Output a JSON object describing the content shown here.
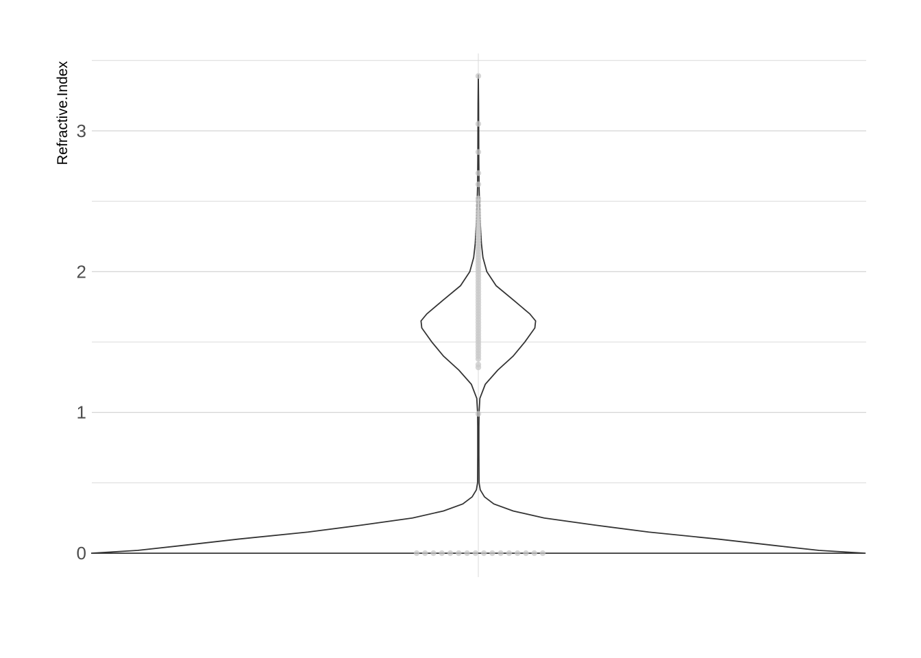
{
  "chart_data": {
    "type": "violin",
    "title": "",
    "xlabel": "",
    "ylabel": "Refractive.Index",
    "ylim": [
      -0.17,
      3.55
    ],
    "y_ticks": [
      {
        "value": 0,
        "label": "0"
      },
      {
        "value": 1,
        "label": "1"
      },
      {
        "value": 2,
        "label": "2"
      },
      {
        "value": 3,
        "label": "3"
      }
    ],
    "y_minor_ticks": [
      0.5,
      1.5,
      2.5,
      3.5
    ],
    "grid": true,
    "legend": "none",
    "density_profile": [
      {
        "y": 0.0,
        "width": 1.0
      },
      {
        "y": 0.02,
        "width": 0.88
      },
      {
        "y": 0.05,
        "width": 0.78
      },
      {
        "y": 0.1,
        "width": 0.62
      },
      {
        "y": 0.15,
        "width": 0.44
      },
      {
        "y": 0.2,
        "width": 0.3
      },
      {
        "y": 0.25,
        "width": 0.17
      },
      {
        "y": 0.3,
        "width": 0.09
      },
      {
        "y": 0.35,
        "width": 0.04
      },
      {
        "y": 0.4,
        "width": 0.016
      },
      {
        "y": 0.45,
        "width": 0.005
      },
      {
        "y": 0.5,
        "width": 0.002
      },
      {
        "y": 0.7,
        "width": 0.0015
      },
      {
        "y": 0.9,
        "width": 0.0015
      },
      {
        "y": 1.0,
        "width": 0.002
      },
      {
        "y": 1.1,
        "width": 0.004
      },
      {
        "y": 1.2,
        "width": 0.018
      },
      {
        "y": 1.3,
        "width": 0.05
      },
      {
        "y": 1.4,
        "width": 0.09
      },
      {
        "y": 1.5,
        "width": 0.12
      },
      {
        "y": 1.6,
        "width": 0.146
      },
      {
        "y": 1.65,
        "width": 0.148
      },
      {
        "y": 1.7,
        "width": 0.133
      },
      {
        "y": 1.8,
        "width": 0.09
      },
      {
        "y": 1.9,
        "width": 0.046
      },
      {
        "y": 2.0,
        "width": 0.022
      },
      {
        "y": 2.1,
        "width": 0.012
      },
      {
        "y": 2.2,
        "width": 0.008
      },
      {
        "y": 2.4,
        "width": 0.004
      },
      {
        "y": 2.6,
        "width": 0.002
      },
      {
        "y": 2.8,
        "width": 0.0013
      },
      {
        "y": 3.0,
        "width": 0.001
      },
      {
        "y": 3.2,
        "width": 0.0007
      },
      {
        "y": 3.4,
        "width": 0.0
      }
    ],
    "points": [
      0.0,
      0.0,
      0.0,
      0.0,
      0.0,
      0.0,
      0.0,
      0.0,
      0.0,
      0.0,
      0.0,
      0.0,
      0.0,
      0.0,
      0.0,
      0.0,
      0.99,
      1.32,
      1.34,
      1.38,
      1.4,
      1.42,
      1.44,
      1.46,
      1.48,
      1.5,
      1.52,
      1.54,
      1.56,
      1.58,
      1.6,
      1.62,
      1.64,
      1.66,
      1.68,
      1.7,
      1.72,
      1.74,
      1.76,
      1.78,
      1.8,
      1.82,
      1.84,
      1.86,
      1.88,
      1.9,
      1.92,
      1.94,
      1.96,
      1.98,
      2.0,
      2.02,
      2.04,
      2.06,
      2.08,
      2.1,
      2.12,
      2.14,
      2.16,
      2.18,
      2.2,
      2.22,
      2.24,
      2.26,
      2.28,
      2.3,
      2.32,
      2.34,
      2.36,
      2.38,
      2.4,
      2.42,
      2.44,
      2.47,
      2.5,
      2.52,
      2.62,
      2.7,
      2.85,
      3.05,
      3.39
    ],
    "colors": {
      "violin_outline": "#333333",
      "points": "#c8c8c8",
      "grid": "#cfcfcf",
      "tick_text": "#4d4d4d"
    }
  }
}
